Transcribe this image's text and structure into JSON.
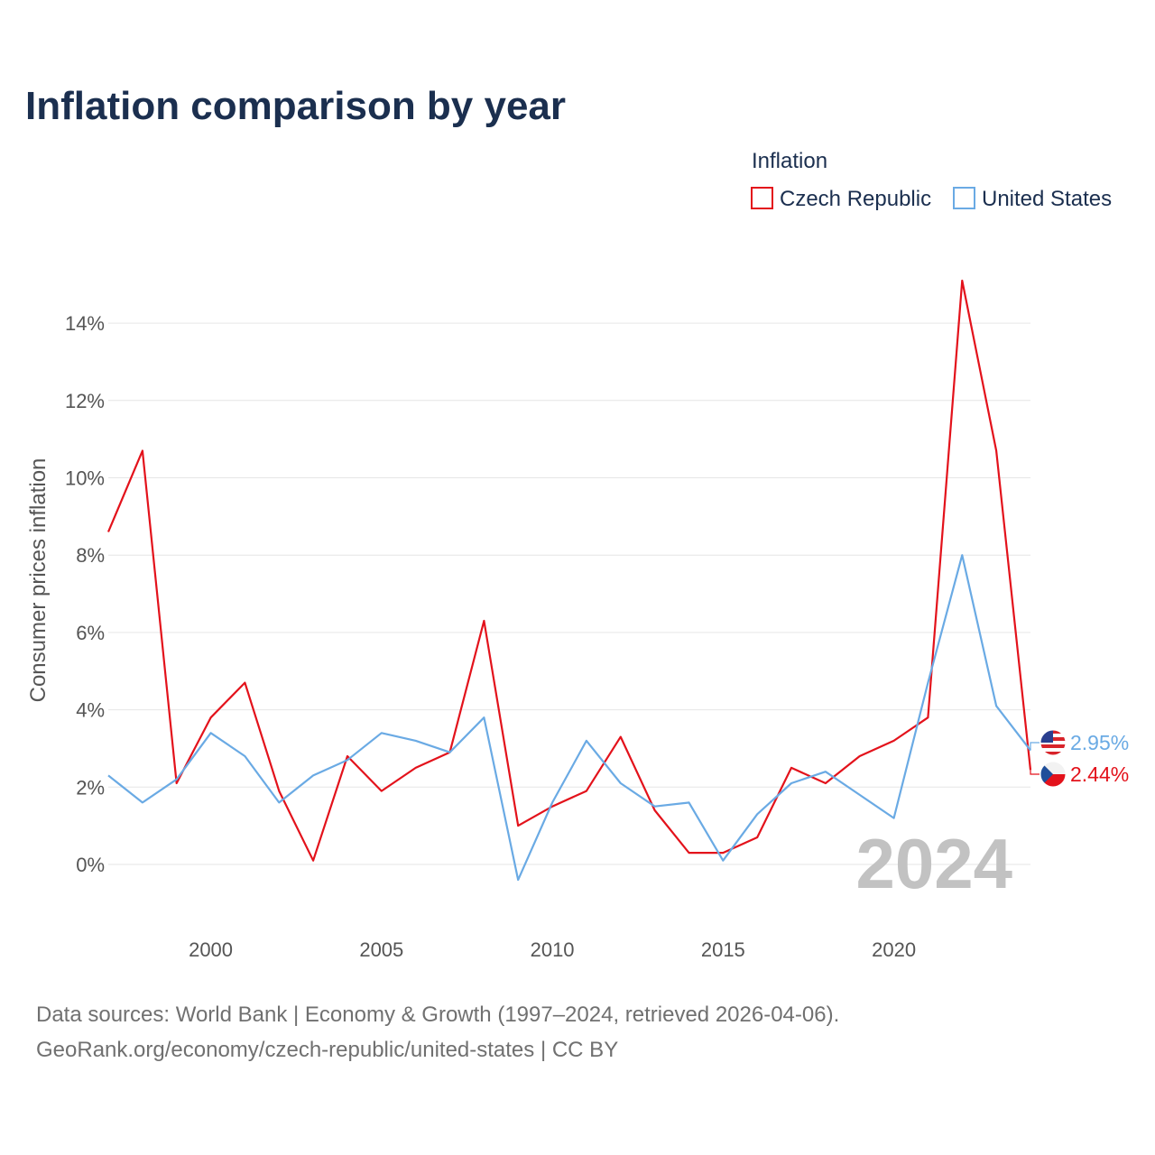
{
  "title": "Inflation comparison by year",
  "legend": {
    "title": "Inflation",
    "items": [
      {
        "name": "Czech Republic",
        "color": "#e3121b"
      },
      {
        "name": "United States",
        "color": "#6aaae4"
      }
    ]
  },
  "watermark_year": "2024",
  "source": {
    "line1": "Data sources: World Bank | Economy & Growth (1997–2024, retrieved 2026-04-06).",
    "line2": "GeoRank.org/economy/czech-republic/united-states | CC BY"
  },
  "chart_data": {
    "type": "line",
    "title": "Inflation comparison by year",
    "xlabel": "",
    "ylabel": "Consumer prices inflation",
    "xlim": [
      1997,
      2024
    ],
    "ylim": [
      -1.5,
      15.2
    ],
    "x_ticks": [
      2000,
      2005,
      2010,
      2015,
      2020
    ],
    "y_ticks": [
      0,
      2,
      4,
      6,
      8,
      10,
      12,
      14
    ],
    "y_tick_labels": [
      "0%",
      "2%",
      "4%",
      "6%",
      "8%",
      "10%",
      "12%",
      "14%"
    ],
    "grid": true,
    "legend_position": "top-right",
    "x": [
      1997,
      1998,
      1999,
      2000,
      2001,
      2002,
      2003,
      2004,
      2005,
      2006,
      2007,
      2008,
      2009,
      2010,
      2011,
      2012,
      2013,
      2014,
      2015,
      2016,
      2017,
      2018,
      2019,
      2020,
      2021,
      2022,
      2023,
      2024
    ],
    "series": [
      {
        "name": "Czech Republic",
        "color": "#e3121b",
        "values": [
          8.6,
          10.7,
          2.1,
          3.8,
          4.7,
          1.9,
          0.1,
          2.8,
          1.9,
          2.5,
          2.9,
          6.3,
          1.0,
          1.5,
          1.9,
          3.3,
          1.4,
          0.3,
          0.3,
          0.7,
          2.5,
          2.1,
          2.8,
          3.2,
          3.8,
          15.1,
          10.7,
          2.44
        ],
        "end_label": "2.44%"
      },
      {
        "name": "United States",
        "color": "#6aaae4",
        "values": [
          2.3,
          1.6,
          2.2,
          3.4,
          2.8,
          1.6,
          2.3,
          2.7,
          3.4,
          3.2,
          2.9,
          3.8,
          -0.4,
          1.6,
          3.2,
          2.1,
          1.5,
          1.6,
          0.1,
          1.3,
          2.1,
          2.4,
          1.8,
          1.2,
          4.7,
          8.0,
          4.1,
          2.95
        ],
        "end_label": "2.95%"
      }
    ]
  }
}
